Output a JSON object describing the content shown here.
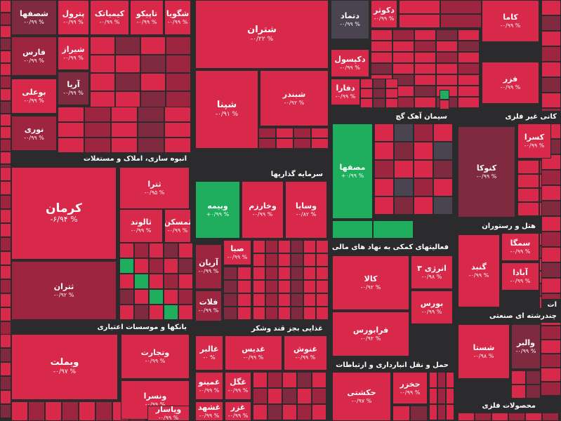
{
  "colors": {
    "background": "#2b2b2e",
    "red": "#d8294a",
    "dark_red": "#9e2540",
    "darker_red": "#7f2a3e",
    "grey": "#4a4450",
    "green": "#1fae5d"
  },
  "sectors": [
    {
      "label": "انبوه سازی، املاک و مستغلات"
    },
    {
      "label": "سرمایه گذاریها"
    },
    {
      "label": "سیمان آهک گچ"
    },
    {
      "label": "کانی غیر فلزی"
    },
    {
      "label": "هتل و رستوران"
    },
    {
      "label": "فعالیتهای کمکی به نهاد های مالی"
    },
    {
      "label": "بانکها و موسسات اعتباری"
    },
    {
      "label": "غذایی بجز قند وشکر"
    },
    {
      "label": "چندرشته ای صنعتی"
    },
    {
      "label": "حمل و نقل انبارداری و ارتباطات"
    },
    {
      "label": "محصولات فلزی"
    },
    {
      "label": "ات"
    }
  ],
  "tiles": [
    {
      "name": "شصفها",
      "change": "-۰/۹۹ %"
    },
    {
      "name": "پترول",
      "change": "-۰/۹۹ %"
    },
    {
      "name": "کیمیاتک",
      "change": "-۰/۹۹ %"
    },
    {
      "name": "تاپیکو",
      "change": "-۰/۹۹ %"
    },
    {
      "name": "شگویا",
      "change": "-۰/۹۹ %"
    },
    {
      "name": "شتران",
      "change": "-۰/۲۲ %"
    },
    {
      "name": "فارس",
      "change": "-۰/۹۹ %"
    },
    {
      "name": "شیراز",
      "change": "-۰/۹۹ %"
    },
    {
      "name": "بوعلی",
      "change": "-۰/۹۹ %"
    },
    {
      "name": "آریا",
      "change": "-۰/۹۹ %"
    },
    {
      "name": "نوری",
      "change": "-۰/۹۹ %"
    },
    {
      "name": "شپنا",
      "change": "-۰/۹۱ %"
    },
    {
      "name": "شبندر",
      "change": "-۰/۹۲ %"
    },
    {
      "name": "دتماد",
      "change": "-۰/۹۹ %"
    },
    {
      "name": "دکوثر",
      "change": "-۰/۹۹ %"
    },
    {
      "name": "دکپسول",
      "change": "-۰/۹۹ %"
    },
    {
      "name": "دفارا",
      "change": "-۰/۹۹ %"
    },
    {
      "name": "کاما",
      "change": "-۰/۹۹ %"
    },
    {
      "name": "فزر",
      "change": "-۰/۹۹ %"
    },
    {
      "name": "کرمان",
      "change": "-۶/۹۴ %"
    },
    {
      "name": "ثترا",
      "change": "-۰/۹۵ %"
    },
    {
      "name": "ثالوند",
      "change": "-۰/۹۹ %"
    },
    {
      "name": "ثمسکن",
      "change": "-۰/۹۹ %"
    },
    {
      "name": "ثتران",
      "change": "-۰/۹۲ %"
    },
    {
      "name": "وبیمه",
      "change": "+۰/۹۹ %"
    },
    {
      "name": "وخارزم",
      "change": "-۰/۹۹ %"
    },
    {
      "name": "وسایا",
      "change": "-۰/۸۲ %"
    },
    {
      "name": "صبا",
      "change": "-۰/۹۹ %"
    },
    {
      "name": "آریان",
      "change": "-۰/۹۹ %"
    },
    {
      "name": "فلات",
      "change": "-۰/۹۹ %"
    },
    {
      "name": "مصفها",
      "change": "+۰/۹۹ %"
    },
    {
      "name": "کنوکا",
      "change": "-۰/۹۹ %"
    },
    {
      "name": "کسرا",
      "change": "-۰/۹۹ %"
    },
    {
      "name": "سمگا",
      "change": "-۰/۹۹ %"
    },
    {
      "name": "گنبد",
      "change": "-۰/۹۹ %"
    },
    {
      "name": "آبادا",
      "change": "-۰/۹۹ %"
    },
    {
      "name": "کالا",
      "change": "-۰/۹۲ %"
    },
    {
      "name": "انرژی ۳",
      "change": "-۰/۹۸ %"
    },
    {
      "name": "بورس",
      "change": "-۰/۹۹ %"
    },
    {
      "name": "فرابورس",
      "change": "-۰/۹۲ %"
    },
    {
      "name": "شستا",
      "change": "-۰/۹۸ %"
    },
    {
      "name": "والبر",
      "change": "-۰/۹۹ %"
    },
    {
      "name": "وبملت",
      "change": "-۰/۹۷ %"
    },
    {
      "name": "وتجارت",
      "change": "-۰/۹۹ %"
    },
    {
      "name": "ونسرا",
      "change": "-۰/۹۹ %"
    },
    {
      "name": "وپاسار",
      "change": "-۰/۹۹ %"
    },
    {
      "name": "غالبر",
      "change": "-۰ %"
    },
    {
      "name": "غدیس",
      "change": "-۰/۹۹ %"
    },
    {
      "name": "غنوش",
      "change": "-۰/۹۹ %"
    },
    {
      "name": "غمینو",
      "change": "-۰/۹۹ %"
    },
    {
      "name": "غگل",
      "change": "-۰/۹۹ %"
    },
    {
      "name": "غزر",
      "change": "-۰/۹۹ %"
    },
    {
      "name": "غشهد",
      "change": "-۰/۹۹ %"
    },
    {
      "name": "حکشتی",
      "change": "-۰/۹۷ %"
    },
    {
      "name": "حخزر",
      "change": "-۰/۹۹ %"
    }
  ]
}
